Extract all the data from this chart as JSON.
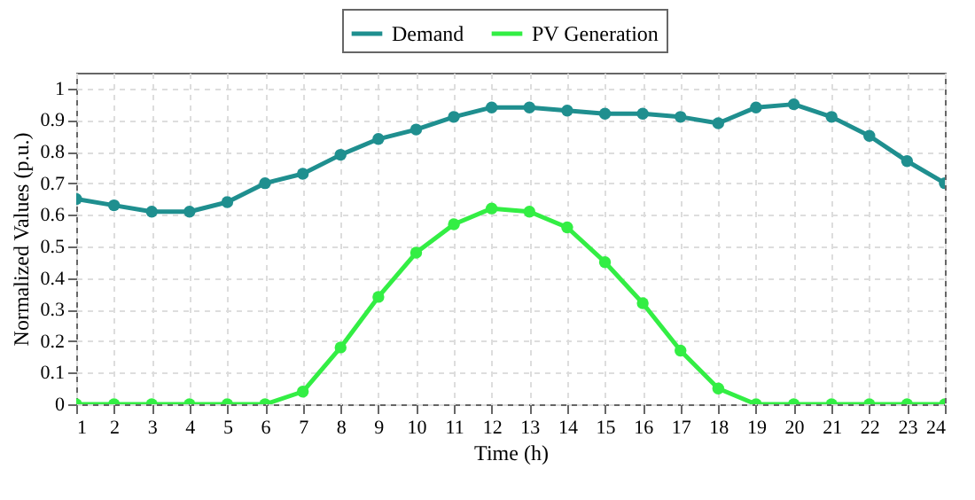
{
  "chart_data": {
    "type": "line",
    "xlabel": "Time (h)",
    "ylabel": "Normalized Values (p.u.)",
    "x": [
      1,
      2,
      3,
      4,
      5,
      6,
      7,
      8,
      9,
      10,
      11,
      12,
      13,
      14,
      15,
      16,
      17,
      18,
      19,
      20,
      21,
      22,
      23,
      24
    ],
    "series": [
      {
        "name": "Demand",
        "color": "#1f8f8f",
        "values": [
          0.65,
          0.63,
          0.61,
          0.61,
          0.64,
          0.7,
          0.73,
          0.79,
          0.84,
          0.87,
          0.91,
          0.94,
          0.94,
          0.93,
          0.92,
          0.92,
          0.91,
          0.89,
          0.94,
          0.95,
          0.91,
          0.85,
          0.77,
          0.7
        ]
      },
      {
        "name": "PV Generation",
        "color": "#33ee44",
        "values": [
          0,
          0,
          0,
          0,
          0,
          0,
          0.04,
          0.18,
          0.34,
          0.48,
          0.57,
          0.62,
          0.61,
          0.56,
          0.45,
          0.32,
          0.17,
          0.05,
          0,
          0,
          0,
          0,
          0,
          0
        ]
      }
    ],
    "xlim": [
      1,
      24
    ],
    "xticks": [
      1,
      2,
      3,
      4,
      5,
      6,
      7,
      8,
      9,
      10,
      11,
      12,
      13,
      14,
      15,
      16,
      17,
      18,
      19,
      20,
      21,
      22,
      23,
      24
    ],
    "ylim": [
      0,
      1.05
    ],
    "yticks": [
      0,
      0.1,
      0.2,
      0.3,
      0.4,
      0.5,
      0.6,
      0.7,
      0.8,
      0.9,
      1
    ],
    "grid": true,
    "legend": "top",
    "marker": "circle",
    "line_style": "solid"
  }
}
